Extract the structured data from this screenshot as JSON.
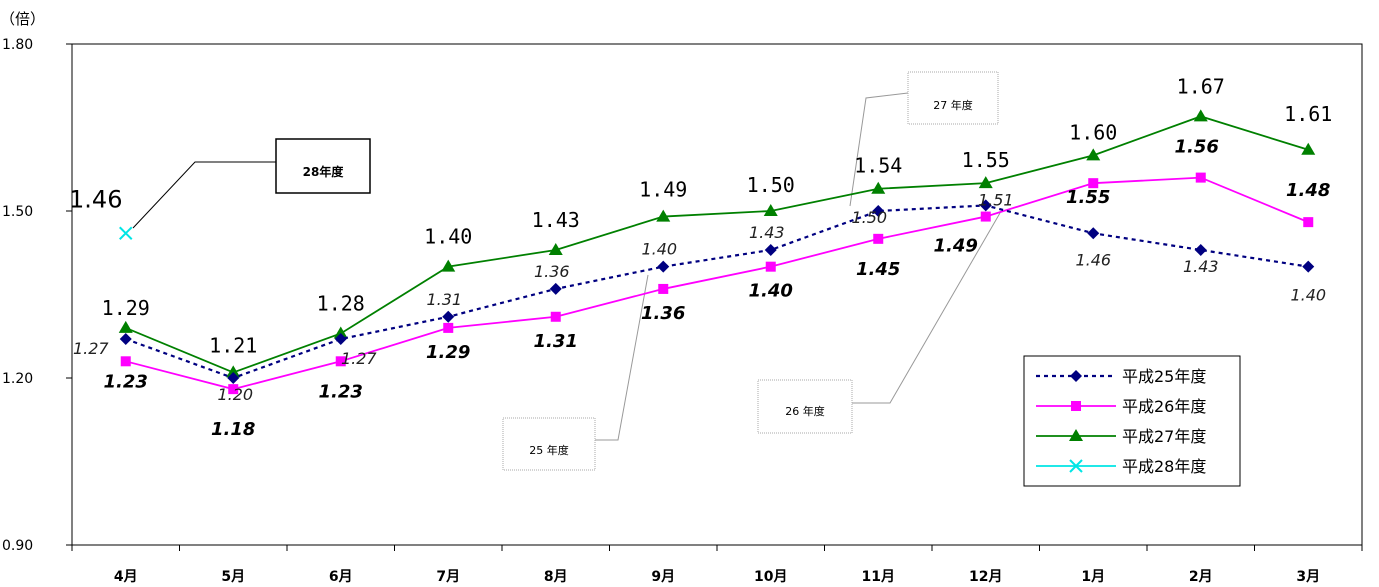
{
  "chart_data": {
    "type": "line",
    "y_unit_label": "（倍）",
    "ylim": [
      0.9,
      1.8
    ],
    "yticks": [
      "0.90",
      "1.20",
      "1.50",
      "1.80"
    ],
    "categories": [
      "4月",
      "5月",
      "6月",
      "7月",
      "8月",
      "9月",
      "10月",
      "11月",
      "12月",
      "1月",
      "2月",
      "3月"
    ],
    "series": [
      {
        "name": "平成25年度",
        "color": "#000080",
        "marker": "diamond",
        "dashed": true,
        "values": [
          1.27,
          1.2,
          1.27,
          1.31,
          1.36,
          1.4,
          1.43,
          1.5,
          1.51,
          1.46,
          1.43,
          1.4
        ],
        "labels": [
          "1.27",
          "1.20",
          "1.27",
          "1.31",
          "1.36",
          "1.40",
          "1.43",
          "1.50",
          "1.51",
          "1.46",
          "1.43",
          "1.40"
        ]
      },
      {
        "name": "平成26年度",
        "color": "#ff00ff",
        "marker": "square",
        "dashed": false,
        "values": [
          1.23,
          1.18,
          1.23,
          1.29,
          1.31,
          1.36,
          1.4,
          1.45,
          1.49,
          1.55,
          1.56,
          1.48
        ],
        "labels": [
          "1.23",
          "1.18",
          "1.23",
          "1.29",
          "1.31",
          "1.36",
          "1.40",
          "1.45",
          "1.49",
          "1.55",
          "1.56",
          "1.48"
        ]
      },
      {
        "name": "平成27年度",
        "color": "#008000",
        "marker": "triangle",
        "dashed": false,
        "values": [
          1.29,
          1.21,
          1.28,
          1.4,
          1.43,
          1.49,
          1.5,
          1.54,
          1.55,
          1.6,
          1.67,
          1.61
        ],
        "labels": [
          "1.29",
          "1.21",
          "1.28",
          "1.40",
          "1.43",
          "1.49",
          "1.50",
          "1.54",
          "1.55",
          "1.60",
          "1.67",
          "1.61"
        ]
      },
      {
        "name": "平成28年度",
        "color": "#00e5e5",
        "marker": "x",
        "dashed": false,
        "values": [
          1.46,
          null,
          null,
          null,
          null,
          null,
          null,
          null,
          null,
          null,
          null,
          null
        ],
        "labels": [
          "1.46",
          "",
          "",
          "",
          "",
          "",
          "",
          "",
          "",
          "",
          "",
          ""
        ]
      }
    ],
    "callouts": [
      {
        "text": "28年度",
        "bold": true
      },
      {
        "text": "27 年度",
        "bold": false
      },
      {
        "text": "26 年度",
        "bold": false
      },
      {
        "text": "25 年度",
        "bold": false
      }
    ],
    "legend": "bottom-right"
  }
}
